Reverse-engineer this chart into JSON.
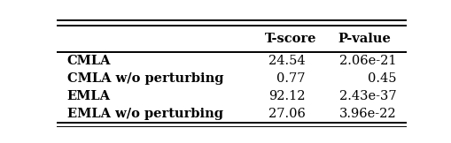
{
  "rows": [
    [
      "CMLA",
      "24.54",
      "2.06e-21"
    ],
    [
      "CMLA w/o perturbing",
      "0.77",
      "0.45"
    ],
    [
      "EMLA",
      "92.12",
      "2.43e-37"
    ],
    [
      "EMLA w/o perturbing",
      "27.06",
      "3.96e-22"
    ]
  ],
  "col_headers": [
    "",
    "T-score",
    "P-value"
  ],
  "figsize": [
    5.1,
    1.62
  ],
  "dpi": 100,
  "background_color": "#ffffff",
  "font_size": 10.5
}
